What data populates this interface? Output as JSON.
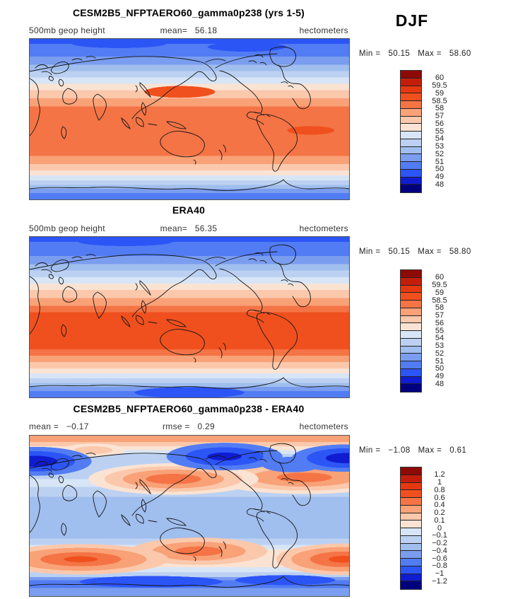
{
  "season": "DJF",
  "palette": [
    "#8E0A06",
    "#C41E0B",
    "#E6380F",
    "#F0501E",
    "#F47446",
    "#F9A177",
    "#FBC8AC",
    "#FBE3D3",
    "#D8E5F6",
    "#BCD1F2",
    "#A0BEEE",
    "#7B9DEF",
    "#527CF3",
    "#2C55F6",
    "#101CD0",
    "#00007E"
  ],
  "panels": [
    {
      "title": "CESM2B5_NFPTAERO60_gamma0p238 (yrs 1-5)",
      "field_label": "500mb geop height",
      "mean_label": "mean=",
      "mean_value": "56.18",
      "units": "hectometers",
      "min_label": "Min =",
      "min_value": "50.15",
      "max_label": "Max =",
      "max_value": "58.60",
      "colorbar_labels": [
        "60",
        "59.5",
        "59",
        "58.5",
        "58",
        "57",
        "56",
        "55",
        "54",
        "53",
        "52",
        "51",
        "50",
        "49",
        "48"
      ]
    },
    {
      "title": "ERA40",
      "field_label": "500mb geop height",
      "mean_label": "mean=",
      "mean_value": "56.35",
      "units": "hectometers",
      "min_label": "Min =",
      "min_value": "50.15",
      "max_label": "Max =",
      "max_value": "58.80",
      "colorbar_labels": [
        "60",
        "59.5",
        "59",
        "58.5",
        "58",
        "57",
        "56",
        "55",
        "54",
        "53",
        "52",
        "51",
        "50",
        "49",
        "48"
      ]
    },
    {
      "title": "CESM2B5_NFPTAERO60_gamma0p238 - ERA40",
      "mean_label": "mean =",
      "mean_value": "−0.17",
      "rmse_label": "rmse =",
      "rmse_value": "0.29",
      "units": "hectometers",
      "min_label": "Min =",
      "min_value": "−1.08",
      "max_label": "Max =",
      "max_value": "0.61",
      "colorbar_labels": [
        "1.2",
        "1",
        "0.8",
        "0.6",
        "0.4",
        "0.2",
        "0.1",
        "0",
        "−0.1",
        "−0.2",
        "−0.4",
        "−0.6",
        "−0.8",
        "−1",
        "−1.2"
      ]
    }
  ],
  "chart_data": [
    {
      "type": "heatmap",
      "subtype": "filled_contour_world_map",
      "title": "CESM2B5_NFPTAERO60_gamma0p238 (yrs 1-5)",
      "variable": "500mb geop height",
      "units": "hectometers",
      "season": "DJF",
      "stats": {
        "mean": 56.18,
        "min": 50.15,
        "max": 58.6
      },
      "contour_levels": [
        48,
        49,
        50,
        51,
        52,
        53,
        54,
        55,
        56,
        57,
        58,
        58.5,
        59,
        59.5,
        60
      ],
      "legend_position": "right",
      "projection": "global cylindrical, Pacific-centered",
      "pattern": "zonal bands: blue (~50 hm) at both poles grading to orange (~58 hm) across the tropics"
    },
    {
      "type": "heatmap",
      "subtype": "filled_contour_world_map",
      "title": "ERA40",
      "variable": "500mb geop height",
      "units": "hectometers",
      "season": "DJF",
      "stats": {
        "mean": 56.35,
        "min": 50.15,
        "max": 58.8
      },
      "contour_levels": [
        48,
        49,
        50,
        51,
        52,
        53,
        54,
        55,
        56,
        57,
        58,
        58.5,
        59,
        59.5,
        60
      ],
      "legend_position": "right",
      "projection": "global cylindrical, Pacific-centered",
      "pattern": "same zonal structure as model but deeper tropical maximum (>58.5 hm, red-orange band)"
    },
    {
      "type": "heatmap",
      "subtype": "filled_contour_difference_map",
      "title": "CESM2B5_NFPTAERO60_gamma0p238 - ERA40",
      "variable": "500mb geop height difference",
      "units": "hectometers",
      "season": "DJF",
      "stats": {
        "mean": -0.17,
        "rmse": 0.29,
        "min": -1.08,
        "max": 0.61
      },
      "contour_levels": [
        -1.2,
        -1,
        -0.8,
        -0.6,
        -0.4,
        -0.2,
        -0.1,
        0,
        0.1,
        0.2,
        0.4,
        0.6,
        0.8,
        1,
        1.2
      ],
      "legend_position": "right",
      "projection": "global cylindrical, Pacific-centered",
      "pattern": "weak negative (light blue) over most of globe; strong negative centers (<-0.8) near 60N (Europe, Bering, N Atlantic); positive centers (+0.4 to +0.6) in midlatitude N Pacific, N America/N Atlantic and Southern Ocean near 50S; positive band along northern map edge"
    }
  ]
}
